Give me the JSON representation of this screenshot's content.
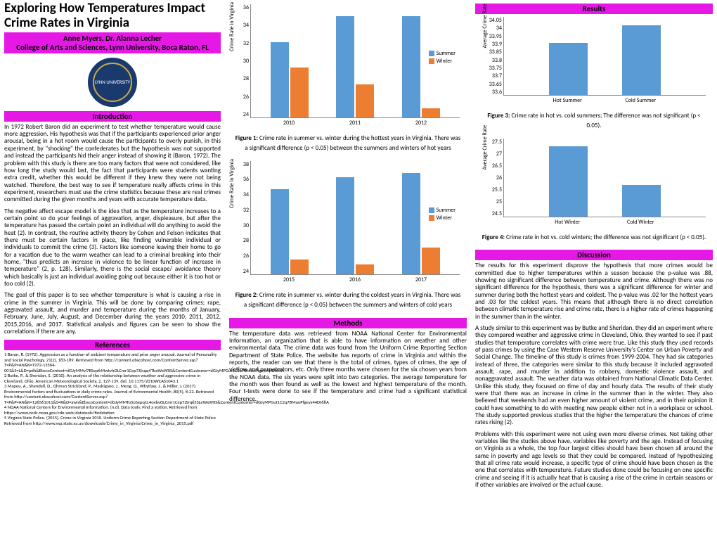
{
  "title": "Exploring How Temperatures Impact Crime Rates in Virginia",
  "authors_line1": "Anne Myers, Dr. Alanna Lecher",
  "authors_line2": "College of Arts and Sciences, Lynn University, Boca Raton, FL",
  "logo_text": "LYNN UNIVERSITY",
  "colors": {
    "header_bg": "#e618e6",
    "summer": "#5b9bd5",
    "winter": "#ed7d31",
    "logo_bg": "#1a3a6e",
    "logo_ring": "#c9a94a"
  },
  "sections": {
    "introduction": "Introduction",
    "references": "References",
    "methods": "Methods",
    "results": "Results",
    "discussion": "Discussion"
  },
  "intro_p1": "In 1972 Robert Baron did an experiment to test whether temperature would cause more aggression. His hypothesis was that if the participants experienced prior anger arousal, being in a hot room would cause the participants to overly punish, in this experiment, by \"shocking\" the confederates but the hypothesis was not supported and instead the participants hid their anger instead of showing it (Baron, 1972). The problem with this study is there are too many factors that were not considered, like how long the study would last, the fact that participants were students wanting extra credit, whether this would be different if they knew they were not being watched. Therefore, the best way to see if temperature really affects crime in this experiment, researchers must use the crime statistics because these are real crimes committed during the given months and years with accurate temperature data.",
  "intro_p2": "The negative affect escape model is the idea that as the temperature increases to a certain point so do your feelings of aggravation, anger, displeasure, but after the temperature has passed the certain point an individual will do anything to avoid the heat (2). In contrast, the routine activity theory by Cohen and Felson indicates that there must be certain factors in place, like finding vulnerable individual or individuals to commit the crime (3). Factors like someone leaving their home to go for a vacation due to the warm weather can lead to a criminal breaking into their home, \"thus predicts an increase in violence to be linear function of increase in temperature\" (2, p. 128). Similarly, there is the social escape/ avoidance theory which basically is just an individual avoiding going out because either it is too hot or too cold (2).",
  "intro_p3": "The goal of this paper is to see whether temperature is what is causing a rise in crime in the summer in Virginia. This will be done by comparing crimes; rape, aggravated assault, and murder and temperature during the months of January, February, June, July, August, and December during the years 2010, 2011, 2012, 2015,2016, and 2017. Statistical analysis and figures can be seen to show the correlations if there are any.",
  "references_text": "1 Baron, R. (1972). Aggression as a function of ambient temperature and prior anger arousal. Journal of Personality and Social Psychology, 21(2), 183-189. Retrieved from http://content.ebscohost.com/ContentServer.asp?T=P&P=AN&K=1972-13564-001&S=L&D=pdh&EbscoContent=dGJyMMvl7ESep644wtvhOLCmr1Cep7JSsqq4TbaWxWXS&ContentCustomer=dGJyMPGut1C2o7BMuePfgeyx44Dt6fIA\n2 Butke, P., & Sheridan, S. (2010). An analysis of the relationship between weather and aggressive crime in Cleveland, Ohio. American Meteorological Society, 2, 127-139. doi: 10.1175/2010WCAS1043.1\n3 Mapou, A., Shendell, D., Ohman Strickland, P., Madrigano, J., Meng, Q., Whytlaw, J., & Miller, J. (2017). Environmental factors and fluctuations in daily crime rates. Journal of Evironmental Health ,80(5), 8-22. Retrieved from http://content.ebscohost.com/ContentServer.asp?T=P&P=AN&K=126561011&S=R&D=awn&EbscoContent=dGJyMMTo5oSepq1L4ovbvOLCmr1Cep7JSrq65SLeWxWXS&ContentCustomer=dGJyMPGut1C2q7BMuePfgeyx44Dt6fIA\n4 NOAA National Centers for Environmental Information. (n.d). Data tools: Find a station. Retrieved from https://www.ncdc.noaa.gov/cdo-web/datatools/findstation\n5 Virginia State Police. (2015). Crime in Virginia 2010. Uniform Crime Reporting Section Department of State Police Retrieved from http://www.vsp.state.va.us/downloads/Crime_in_Virginia/Crime_in_Virginia_2015.pdf",
  "chart1": {
    "type": "bar",
    "ylabel": "Crime Rate in Virginia",
    "ymin": 24,
    "ymax": 36,
    "ystep": 2,
    "categories": [
      "2010",
      "2011",
      "2012"
    ],
    "series": [
      {
        "name": "Summer",
        "color": "#5b9bd5",
        "values": [
          32.0,
          34.7,
          34.7
        ]
      },
      {
        "name": "Winter",
        "color": "#ed7d31",
        "values": [
          29.3,
          27.5,
          25.0
        ]
      }
    ],
    "caption_label": "Figure 1:",
    "caption": " Crime rate in summer vs. winter during the hottest years in Virginia.  There was a significant difference (p < 0.05) between the summers and winters of hot years"
  },
  "chart2": {
    "type": "bar",
    "ylabel": "Crime Rate in Virginia",
    "ymin": 24,
    "ymax": 38,
    "ystep": 2,
    "categories": [
      "2015",
      "2016",
      "2017"
    ],
    "series": [
      {
        "name": "Summer",
        "color": "#5b9bd5",
        "values": [
          34.5,
          36.0,
          36.5
        ]
      },
      {
        "name": "Winter",
        "color": "#ed7d31",
        "values": [
          25.8,
          25.2,
          27.3
        ]
      }
    ],
    "caption_label": "Figure 2:",
    "caption": " Crime rate in summer vs. winter during the coldest years in Virginia.  There was a significant difference (p < 0.05) between the summers and winters of cold years"
  },
  "chart3": {
    "type": "bar",
    "ylabel": "Average Crime Rate",
    "ymin": 33.6,
    "ymax": 34.05,
    "ystep": 0.05,
    "categories": [
      "Hot Summer",
      "Cold Summer"
    ],
    "values": [
      33.9,
      34.0
    ],
    "color": "#5b9bd5",
    "caption_label": "Figure 3:",
    "caption": " Crime rate in hot vs. cold summers; The difference was not significant (p < 0.05)."
  },
  "chart4": {
    "type": "bar",
    "ylabel": "Average Crime Rate",
    "ymin": 24.5,
    "ymax": 27.5,
    "ystep": 0.5,
    "categories": [
      "Hot Winter",
      "Cold Winter"
    ],
    "values": [
      27.2,
      25.7
    ],
    "color": "#5b9bd5",
    "caption_label": "Figure 4:",
    "caption": " Crime rate in hot vs. cold winters; the difference was not significant (p < 0.05)."
  },
  "methods_text": "The temperature data was retrieved from NOAA National Center for Environmental Information, an organization that is able to have information on weather and other environmental data. The crime data was found from the Uniform Crime Reporting Section Department of State Police. The website has reports of crime in Virginia and within the reports, the reader can see that there is the total of crimes, types of crimes, the age of victims and perpetrators, etc. Only three months were chosen for the six chosen years from the NOAA data. The six years were split into two categories. The average temperature for the month was then found as well as the lowest and highest temperature of the month. Four t-tests were done to see if the temperature and crime had a significant statistical difference.",
  "discussion_p1": "The results for this experiment disprove the hypothesis that more crimes would be committed due to higher temperatures within a season because the p-value was .88, showing no significant difference between temperature and crime. Although there was no significant difference for the hypothesis, there was a significant difference for winter and summer during both the hottest years and coldest. The p-value was .02 for the hottest years and .03 for the coldest years. This means that although there is no direct correlation between climatic temperature rise and crime rate, there is a higher rate of crimes happening in the summer than in the winter.",
  "discussion_p2": "A study similar to this experiment was by Butke and Sheridan, they did an experiment where they compared weather and aggressive crime in Cleveland, Ohio, they wanted to see if past studies that temperature correlates with crime were true. Like this study they used records of pass crimes by using the Case Western Reserve University's Center on Urban Poverty and Social Change. The timeline of this study is crimes from 1999-2004. They had six categories instead of three, the categories were similar to this study because it included aggravated assault, rape, and murder in addition to robbery, domestic violence assault, and nonaggravated assault. The weather data was obtained from National Climatic Data Center. Unlike this study, they focused on time of day and hourly data. The results of their study were that there was an increase in crime in the summer than in the winter. They also believed that weekends had an even higher amount of violent crime, and in their opinion it could have something to do with meeting new people either not in a workplace or school. The study supported previous studies that the higher the temperature the chances of crime rates rising (2).",
  "discussion_p3": "Problems with this experiment were not using even more diverse crimes. Not taking other variables like the studies above have, variables like poverty and the age. Instead of focusing on Virginia as a whole, the top four largest cities should have been chosen all around the same in poverty and age levels so that they could be compared. Instead of hypothesizing that all crime rate would increase, a specific type of crime should have been chosen as the one that correlates with temperature. Future studies done could be focusing on one specific crime and seeing if it is actually heat that is causing a rise of the crime in certain seasons or if other variables are involved or the actual cause."
}
